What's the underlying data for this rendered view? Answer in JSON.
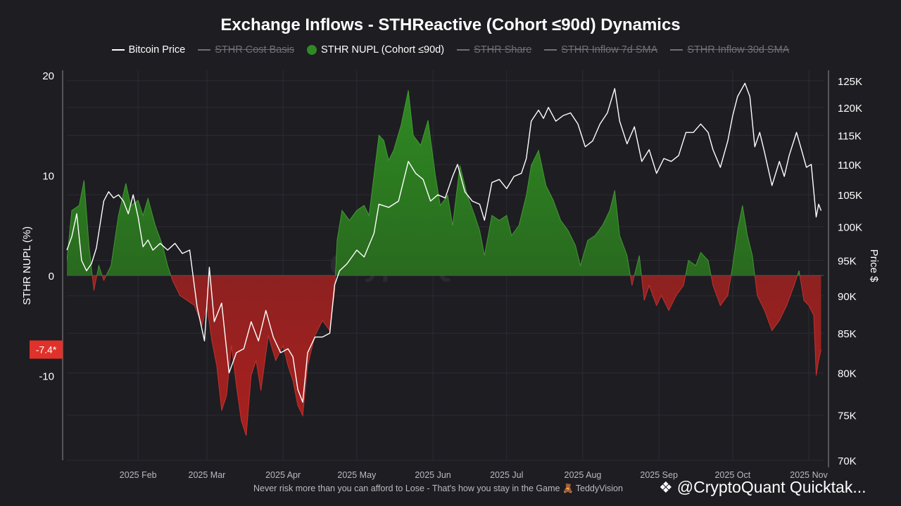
{
  "title": "Exchange Inflows - STHReactive (Cohort ≤90d) Dynamics",
  "legend": [
    {
      "label": "Bitcoin Price",
      "marker": "line",
      "enabled": true
    },
    {
      "label": "STHR Cost Basis",
      "marker": "line",
      "enabled": false
    },
    {
      "label": "STHR NUPL (Cohort ≤90d)",
      "marker": "dot",
      "enabled": true
    },
    {
      "label": "STHR Share",
      "marker": "line",
      "enabled": false
    },
    {
      "label": "STHR Inflow 7d SMA",
      "marker": "line",
      "enabled": false
    },
    {
      "label": "STHR Inflow 30d SMA",
      "marker": "line",
      "enabled": false
    }
  ],
  "colors": {
    "background": "#1d1d22",
    "positive_fill": "#2f8a22",
    "negative_fill": "#a8201e",
    "price_line": "#ffffff",
    "grid": "#2c2c33",
    "badge": "#e0322a"
  },
  "footer": "Never risk more than you can afford to Lose - That's how you stay in the Game 🧸  TeddyVision",
  "brand": "@CryptoQuant Quicktak...",
  "watermark": "CryptoQuant",
  "chart_data": {
    "type": "area",
    "ylabel": "STHR NUPL (%)",
    "y2label": "Price $",
    "ylim": [
      -18,
      20
    ],
    "y_ticks": [
      20,
      10,
      0,
      -10
    ],
    "y2_log_scale": true,
    "y2lim": [
      70000,
      127000
    ],
    "y2_ticks": [
      {
        "value": 125000,
        "label": "125K"
      },
      {
        "value": 120000,
        "label": "120K"
      },
      {
        "value": 115000,
        "label": "115K"
      },
      {
        "value": 110000,
        "label": "110K"
      },
      {
        "value": 105000,
        "label": "105K"
      },
      {
        "value": 100000,
        "label": "100K"
      },
      {
        "value": 95000,
        "label": "95K"
      },
      {
        "value": 90000,
        "label": "90K"
      },
      {
        "value": 85000,
        "label": "85K"
      },
      {
        "value": 80000,
        "label": "80K"
      },
      {
        "value": 75000,
        "label": "75K"
      },
      {
        "value": 70000,
        "label": "70K"
      }
    ],
    "x_range": [
      "2025-01-03",
      "2025-11-07"
    ],
    "x_ticks": [
      {
        "date": "2025-02-01",
        "label": "2025 Feb"
      },
      {
        "date": "2025-03-01",
        "label": "2025 Mar"
      },
      {
        "date": "2025-04-01",
        "label": "2025 Apr"
      },
      {
        "date": "2025-05-01",
        "label": "2025 May"
      },
      {
        "date": "2025-06-01",
        "label": "2025 Jun"
      },
      {
        "date": "2025-07-01",
        "label": "2025 Jul"
      },
      {
        "date": "2025-08-01",
        "label": "2025 Aug"
      },
      {
        "date": "2025-09-01",
        "label": "2025 Sep"
      },
      {
        "date": "2025-10-01",
        "label": "2025 Oct"
      },
      {
        "date": "2025-11-01",
        "label": "2025 Nov"
      }
    ],
    "current_value_label": "-7.4*",
    "grid": true,
    "series": [
      {
        "name": "STHR NUPL (Cohort ≤90d)",
        "points": [
          [
            "2025-01-03",
            1.5
          ],
          [
            "2025-01-05",
            6.5
          ],
          [
            "2025-01-08",
            7.0
          ],
          [
            "2025-01-10",
            9.5
          ],
          [
            "2025-01-12",
            3.0
          ],
          [
            "2025-01-14",
            -1.5
          ],
          [
            "2025-01-16",
            1.0
          ],
          [
            "2025-01-18",
            -0.5
          ],
          [
            "2025-01-21",
            1.0
          ],
          [
            "2025-01-24",
            6.0
          ],
          [
            "2025-01-27",
            9.2
          ],
          [
            "2025-01-29",
            7.0
          ],
          [
            "2025-02-01",
            7.5
          ],
          [
            "2025-02-03",
            6.0
          ],
          [
            "2025-02-05",
            7.7
          ],
          [
            "2025-02-08",
            5.0
          ],
          [
            "2025-02-11",
            3.0
          ],
          [
            "2025-02-13",
            1.0
          ],
          [
            "2025-02-15",
            -0.5
          ],
          [
            "2025-02-18",
            -2.0
          ],
          [
            "2025-02-21",
            -2.5
          ],
          [
            "2025-02-24",
            -3.0
          ],
          [
            "2025-02-27",
            -5.0
          ],
          [
            "2025-03-01",
            -3.0
          ],
          [
            "2025-03-03",
            -6.5
          ],
          [
            "2025-03-05",
            -9.0
          ],
          [
            "2025-03-07",
            -13.5
          ],
          [
            "2025-03-09",
            -12.0
          ],
          [
            "2025-03-11",
            -7.0
          ],
          [
            "2025-03-13",
            -11.0
          ],
          [
            "2025-03-15",
            -14.5
          ],
          [
            "2025-03-17",
            -16.0
          ],
          [
            "2025-03-19",
            -10.0
          ],
          [
            "2025-03-21",
            -8.5
          ],
          [
            "2025-03-23",
            -11.5
          ],
          [
            "2025-03-26",
            -6.0
          ],
          [
            "2025-03-29",
            -8.5
          ],
          [
            "2025-04-01",
            -7.0
          ],
          [
            "2025-04-03",
            -9.0
          ],
          [
            "2025-04-05",
            -10.5
          ],
          [
            "2025-04-07",
            -13.0
          ],
          [
            "2025-04-09",
            -14.0
          ],
          [
            "2025-04-11",
            -9.0
          ],
          [
            "2025-04-14",
            -6.0
          ],
          [
            "2025-04-17",
            -4.5
          ],
          [
            "2025-04-20",
            -5.5
          ],
          [
            "2025-04-22",
            -1.5
          ],
          [
            "2025-04-23",
            3.5
          ],
          [
            "2025-04-25",
            6.5
          ],
          [
            "2025-04-28",
            5.5
          ],
          [
            "2025-05-01",
            6.5
          ],
          [
            "2025-05-04",
            7.0
          ],
          [
            "2025-05-06",
            6.0
          ],
          [
            "2025-05-08",
            10.0
          ],
          [
            "2025-05-10",
            14.0
          ],
          [
            "2025-05-12",
            13.5
          ],
          [
            "2025-05-14",
            11.5
          ],
          [
            "2025-05-16",
            12.5
          ],
          [
            "2025-05-19",
            15.0
          ],
          [
            "2025-05-22",
            18.5
          ],
          [
            "2025-05-24",
            14.0
          ],
          [
            "2025-05-27",
            13.0
          ],
          [
            "2025-05-30",
            15.5
          ],
          [
            "2025-06-02",
            10.0
          ],
          [
            "2025-06-04",
            7.0
          ],
          [
            "2025-06-07",
            8.0
          ],
          [
            "2025-06-09",
            5.0
          ],
          [
            "2025-06-12",
            11.0
          ],
          [
            "2025-06-15",
            8.0
          ],
          [
            "2025-06-18",
            6.0
          ],
          [
            "2025-06-20",
            4.5
          ],
          [
            "2025-06-22",
            2.0
          ],
          [
            "2025-06-25",
            6.0
          ],
          [
            "2025-06-28",
            5.5
          ],
          [
            "2025-07-01",
            6.0
          ],
          [
            "2025-07-03",
            4.0
          ],
          [
            "2025-07-06",
            5.0
          ],
          [
            "2025-07-09",
            8.0
          ],
          [
            "2025-07-11",
            11.0
          ],
          [
            "2025-07-14",
            12.5
          ],
          [
            "2025-07-17",
            9.0
          ],
          [
            "2025-07-20",
            7.5
          ],
          [
            "2025-07-23",
            5.5
          ],
          [
            "2025-07-26",
            4.5
          ],
          [
            "2025-07-29",
            3.0
          ],
          [
            "2025-07-31",
            1.0
          ],
          [
            "2025-08-03",
            3.5
          ],
          [
            "2025-08-06",
            4.0
          ],
          [
            "2025-08-09",
            5.0
          ],
          [
            "2025-08-12",
            6.5
          ],
          [
            "2025-08-14",
            8.5
          ],
          [
            "2025-08-16",
            4.0
          ],
          [
            "2025-08-19",
            2.0
          ],
          [
            "2025-08-21",
            -1.0
          ],
          [
            "2025-08-24",
            2.0
          ],
          [
            "2025-08-26",
            -2.5
          ],
          [
            "2025-08-28",
            -1.0
          ],
          [
            "2025-08-31",
            -3.0
          ],
          [
            "2025-09-02",
            -2.0
          ],
          [
            "2025-09-05",
            -3.5
          ],
          [
            "2025-09-08",
            -2.0
          ],
          [
            "2025-09-11",
            -1.0
          ],
          [
            "2025-09-13",
            1.5
          ],
          [
            "2025-09-16",
            1.0
          ],
          [
            "2025-09-18",
            2.3
          ],
          [
            "2025-09-21",
            1.5
          ],
          [
            "2025-09-23",
            -1.0
          ],
          [
            "2025-09-26",
            -3.0
          ],
          [
            "2025-09-29",
            -2.0
          ],
          [
            "2025-10-01",
            1.0
          ],
          [
            "2025-10-03",
            4.5
          ],
          [
            "2025-10-05",
            7.0
          ],
          [
            "2025-10-07",
            4.0
          ],
          [
            "2025-10-09",
            2.0
          ],
          [
            "2025-10-11",
            -2.0
          ],
          [
            "2025-10-14",
            -3.5
          ],
          [
            "2025-10-17",
            -5.5
          ],
          [
            "2025-10-20",
            -4.5
          ],
          [
            "2025-10-23",
            -3.0
          ],
          [
            "2025-10-26",
            -1.0
          ],
          [
            "2025-10-28",
            0.5
          ],
          [
            "2025-10-30",
            -2.5
          ],
          [
            "2025-11-01",
            -3.0
          ],
          [
            "2025-11-03",
            -4.0
          ],
          [
            "2025-11-04",
            -10.0
          ],
          [
            "2025-11-05",
            -8.5
          ],
          [
            "2025-11-06",
            -7.4
          ]
        ]
      },
      {
        "name": "Bitcoin Price",
        "points": [
          [
            "2025-01-03",
            96500
          ],
          [
            "2025-01-05",
            98500
          ],
          [
            "2025-01-07",
            102000
          ],
          [
            "2025-01-09",
            95000
          ],
          [
            "2025-01-11",
            93500
          ],
          [
            "2025-01-13",
            94500
          ],
          [
            "2025-01-15",
            96800
          ],
          [
            "2025-01-18",
            104000
          ],
          [
            "2025-01-20",
            105500
          ],
          [
            "2025-01-22",
            104500
          ],
          [
            "2025-01-24",
            105000
          ],
          [
            "2025-01-26",
            104000
          ],
          [
            "2025-01-28",
            102000
          ],
          [
            "2025-01-30",
            105000
          ],
          [
            "2025-02-01",
            101500
          ],
          [
            "2025-02-03",
            97000
          ],
          [
            "2025-02-05",
            98000
          ],
          [
            "2025-02-07",
            96500
          ],
          [
            "2025-02-10",
            97500
          ],
          [
            "2025-02-13",
            96500
          ],
          [
            "2025-02-16",
            97500
          ],
          [
            "2025-02-19",
            96000
          ],
          [
            "2025-02-22",
            96500
          ],
          [
            "2025-02-25",
            88500
          ],
          [
            "2025-02-28",
            84000
          ],
          [
            "2025-03-02",
            94000
          ],
          [
            "2025-03-04",
            86500
          ],
          [
            "2025-03-07",
            89000
          ],
          [
            "2025-03-10",
            80000
          ],
          [
            "2025-03-13",
            82500
          ],
          [
            "2025-03-16",
            83000
          ],
          [
            "2025-03-19",
            86500
          ],
          [
            "2025-03-22",
            84000
          ],
          [
            "2025-03-25",
            88000
          ],
          [
            "2025-03-28",
            84500
          ],
          [
            "2025-03-31",
            82500
          ],
          [
            "2025-04-03",
            83000
          ],
          [
            "2025-04-05",
            82000
          ],
          [
            "2025-04-07",
            78000
          ],
          [
            "2025-04-09",
            76500
          ],
          [
            "2025-04-11",
            82500
          ],
          [
            "2025-04-14",
            84500
          ],
          [
            "2025-04-17",
            84500
          ],
          [
            "2025-04-20",
            85000
          ],
          [
            "2025-04-22",
            91500
          ],
          [
            "2025-04-24",
            93500
          ],
          [
            "2025-04-27",
            94500
          ],
          [
            "2025-05-01",
            96500
          ],
          [
            "2025-05-04",
            95500
          ],
          [
            "2025-05-08",
            99000
          ],
          [
            "2025-05-10",
            103500
          ],
          [
            "2025-05-14",
            103000
          ],
          [
            "2025-05-18",
            104000
          ],
          [
            "2025-05-22",
            110500
          ],
          [
            "2025-05-25",
            108500
          ],
          [
            "2025-05-28",
            107500
          ],
          [
            "2025-05-31",
            104000
          ],
          [
            "2025-06-03",
            105000
          ],
          [
            "2025-06-06",
            104500
          ],
          [
            "2025-06-09",
            108000
          ],
          [
            "2025-06-11",
            110000
          ],
          [
            "2025-06-14",
            105500
          ],
          [
            "2025-06-17",
            104000
          ],
          [
            "2025-06-20",
            103500
          ],
          [
            "2025-06-22",
            101000
          ],
          [
            "2025-06-25",
            107000
          ],
          [
            "2025-06-28",
            107500
          ],
          [
            "2025-07-01",
            106000
          ],
          [
            "2025-07-04",
            108000
          ],
          [
            "2025-07-07",
            108500
          ],
          [
            "2025-07-09",
            111000
          ],
          [
            "2025-07-11",
            117500
          ],
          [
            "2025-07-14",
            119500
          ],
          [
            "2025-07-16",
            118000
          ],
          [
            "2025-07-18",
            120000
          ],
          [
            "2025-07-21",
            117500
          ],
          [
            "2025-07-24",
            118500
          ],
          [
            "2025-07-27",
            119000
          ],
          [
            "2025-07-30",
            117000
          ],
          [
            "2025-08-02",
            113000
          ],
          [
            "2025-08-05",
            114000
          ],
          [
            "2025-08-08",
            117000
          ],
          [
            "2025-08-11",
            119000
          ],
          [
            "2025-08-14",
            123500
          ],
          [
            "2025-08-16",
            117500
          ],
          [
            "2025-08-19",
            113500
          ],
          [
            "2025-08-22",
            116500
          ],
          [
            "2025-08-25",
            110500
          ],
          [
            "2025-08-28",
            112500
          ],
          [
            "2025-08-31",
            108500
          ],
          [
            "2025-09-03",
            111000
          ],
          [
            "2025-09-06",
            110500
          ],
          [
            "2025-09-09",
            111500
          ],
          [
            "2025-09-12",
            115500
          ],
          [
            "2025-09-15",
            115500
          ],
          [
            "2025-09-18",
            117000
          ],
          [
            "2025-09-21",
            115500
          ],
          [
            "2025-09-23",
            112500
          ],
          [
            "2025-09-26",
            109500
          ],
          [
            "2025-09-29",
            114000
          ],
          [
            "2025-10-01",
            118500
          ],
          [
            "2025-10-03",
            122000
          ],
          [
            "2025-10-06",
            124500
          ],
          [
            "2025-10-08",
            122000
          ],
          [
            "2025-10-10",
            113000
          ],
          [
            "2025-10-12",
            115500
          ],
          [
            "2025-10-14",
            112000
          ],
          [
            "2025-10-17",
            106500
          ],
          [
            "2025-10-20",
            110500
          ],
          [
            "2025-10-22",
            108000
          ],
          [
            "2025-10-24",
            111500
          ],
          [
            "2025-10-27",
            115500
          ],
          [
            "2025-10-29",
            112500
          ],
          [
            "2025-10-31",
            109500
          ],
          [
            "2025-11-02",
            110000
          ],
          [
            "2025-11-04",
            101500
          ],
          [
            "2025-11-05",
            103500
          ],
          [
            "2025-11-06",
            102500
          ]
        ]
      }
    ]
  }
}
